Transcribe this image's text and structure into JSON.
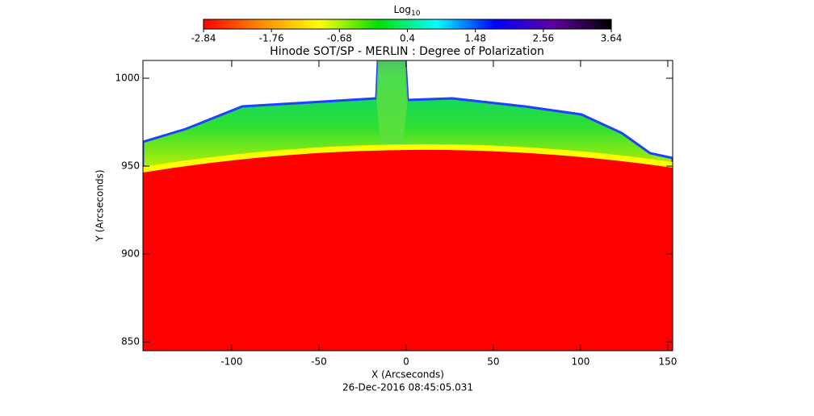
{
  "chart_data": {
    "type": "image",
    "title": "Hinode SOT/SP - MERLIN : Degree of Polarization",
    "x_label": "X (Arcseconds)",
    "y_label": "Y (Arcseconds)",
    "annotation": "26-Dec-2016 08:45:05.031",
    "colorbar_label": "Log",
    "colorbar_label_subscript": "10",
    "clim": [
      -2.84,
      3.64
    ],
    "colorbar_ticks": [
      -2.84,
      -1.76,
      -0.68,
      0.4,
      1.48,
      2.56,
      3.64
    ],
    "colorbar_colors": [
      "#ff0000",
      "#ff8c00",
      "#ffff00",
      "#00e000",
      "#00ffff",
      "#0000ff",
      "#6000a0",
      "#000000"
    ],
    "xlim": [
      -150.9,
      152.8
    ],
    "ylim": [
      845,
      1010.1
    ],
    "xticks": [
      -100,
      -50,
      0,
      50,
      100,
      150
    ],
    "yticks": [
      850,
      900,
      950,
      1000
    ]
  }
}
